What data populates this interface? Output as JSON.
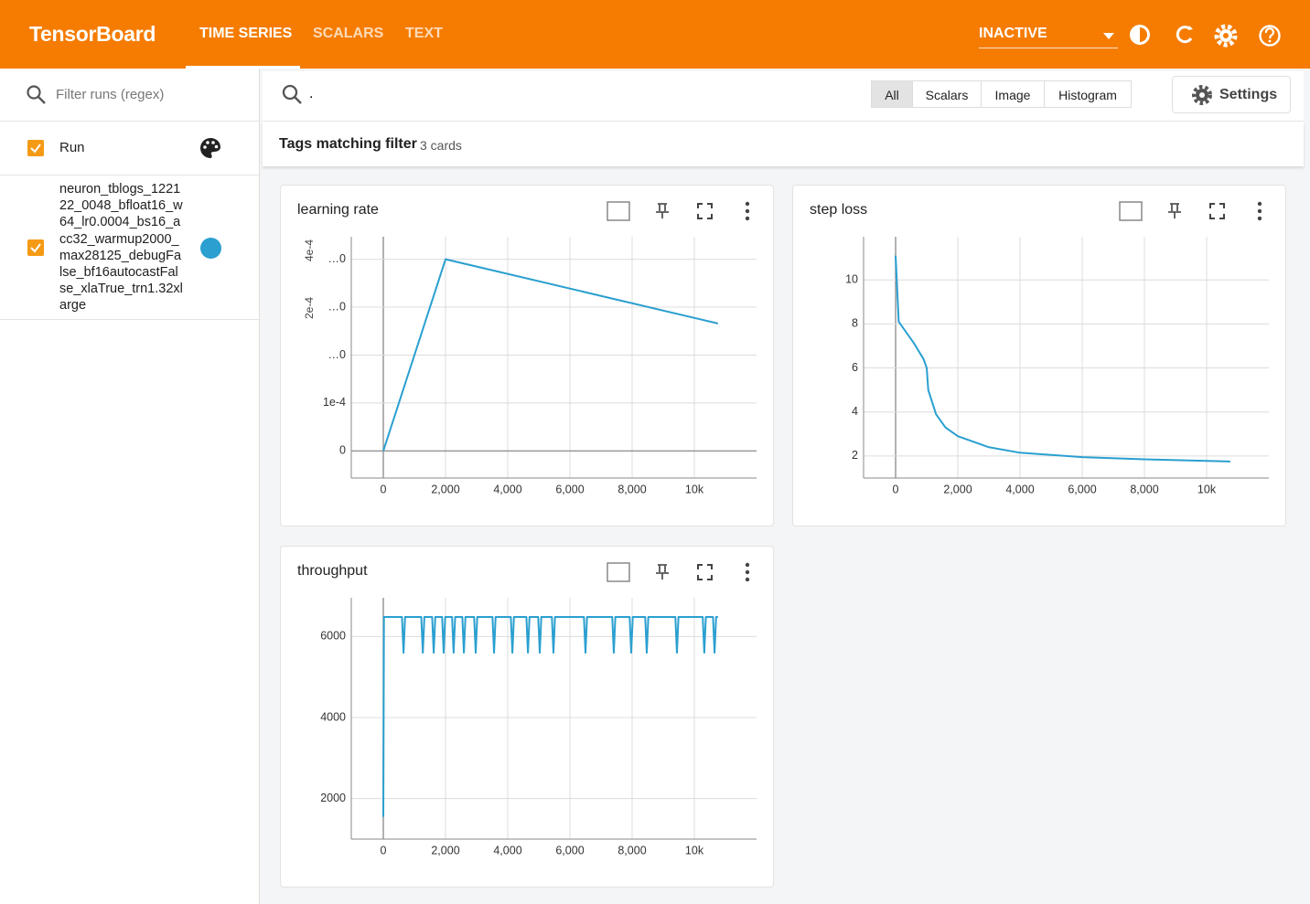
{
  "header": {
    "title": "TensorBoard",
    "tabs": [
      "TIME SERIES",
      "SCALARS",
      "TEXT"
    ],
    "status": "INACTIVE"
  },
  "sidebar": {
    "filter_placeholder": "Filter runs (regex)",
    "run_header": "Run",
    "runs": [
      {
        "name": "neuron_tblogs_122122_0048_bfloat16_w64_lr0.0004_bs16_acc32_warmup2000_max28125_debugFalse_bf16autocastFalse_xlaTrue_trn1.32xlarge",
        "color": "#2a9fd0"
      }
    ]
  },
  "toolbar": {
    "query": ".",
    "filters": [
      "All",
      "Scalars",
      "Image",
      "Histogram"
    ],
    "active_filter": 0,
    "settings": "Settings"
  },
  "summary": {
    "label": "Tags matching filter",
    "count": "3 cards"
  },
  "chart_data": [
    {
      "type": "line",
      "title": "learning rate",
      "color": "#2a9fd0",
      "grid": true,
      "x": [
        0,
        2000,
        10760
      ],
      "values": [
        0,
        0.0004,
        0.000266
      ],
      "xlim": [
        -1030,
        12000
      ],
      "xticks": [
        0,
        {
          "value": 2000,
          "label": "2,000"
        },
        {
          "value": 4000,
          "label": "4,000"
        },
        {
          "value": 6000,
          "label": "6,000"
        },
        {
          "value": 8000,
          "label": "8,000"
        },
        {
          "value": 10000,
          "label": "10k"
        }
      ],
      "ylim": [
        -5.66e-05,
        0.000447
      ],
      "yticks": [
        0,
        {
          "value": 0.0001,
          "label": "1e-4"
        },
        {
          "value": 0.0002,
          "label": "…0"
        },
        {
          "value": 0.0003,
          "label": "…0"
        },
        {
          "value": 0.0004,
          "label": "…0"
        }
      ],
      "clipped_labels": [
        "4e-4",
        "2e-4"
      ]
    },
    {
      "type": "line",
      "title": "step loss",
      "color": "#2a9fd0",
      "grid": true,
      "x": [
        0,
        100,
        300,
        600,
        900,
        1000,
        1050,
        1300,
        1600,
        2000,
        3000,
        4000,
        6000,
        8000,
        10760
      ],
      "values": [
        11.1,
        8.1,
        7.7,
        7.1,
        6.4,
        6.0,
        5.0,
        3.9,
        3.3,
        2.9,
        2.4,
        2.15,
        1.95,
        1.85,
        1.75
      ],
      "xlim": [
        -1030,
        12000
      ],
      "xticks": [
        0,
        {
          "value": 2000,
          "label": "2,000"
        },
        {
          "value": 4000,
          "label": "4,000"
        },
        {
          "value": 6000,
          "label": "6,000"
        },
        {
          "value": 8000,
          "label": "8,000"
        },
        {
          "value": 10000,
          "label": "10k"
        }
      ],
      "ylim": [
        1,
        11.96
      ],
      "yticks": [
        2,
        4,
        6,
        8,
        10
      ]
    },
    {
      "type": "line",
      "title": "throughput",
      "color": "#2a9fd0",
      "grid": true,
      "x": [
        0,
        20,
        600,
        650,
        700,
        1220,
        1270,
        1320,
        1570,
        1620,
        1670,
        1890,
        1940,
        1990,
        2210,
        2260,
        2310,
        2540,
        2590,
        2640,
        2920,
        2970,
        3020,
        3510,
        3560,
        3610,
        4100,
        4150,
        4200,
        4600,
        4650,
        4700,
        4980,
        5030,
        5080,
        5420,
        5470,
        5520,
        6450,
        6500,
        6550,
        7360,
        7410,
        7460,
        7920,
        7970,
        8020,
        8420,
        8470,
        8520,
        9390,
        9440,
        9490,
        10270,
        10320,
        10370,
        10600,
        10650,
        10700,
        10760
      ],
      "values": [
        1550,
        6480,
        6480,
        5600,
        6480,
        6480,
        5600,
        6480,
        6480,
        5600,
        6480,
        6480,
        5600,
        6480,
        6480,
        5600,
        6480,
        6480,
        5600,
        6480,
        6480,
        5600,
        6480,
        6480,
        5600,
        6480,
        6480,
        5600,
        6480,
        6480,
        5600,
        6480,
        6480,
        5600,
        6480,
        6480,
        5600,
        6480,
        6480,
        5600,
        6480,
        6480,
        5600,
        6480,
        6480,
        5600,
        6480,
        6480,
        5600,
        6480,
        6480,
        5600,
        6480,
        6480,
        5600,
        6480,
        6480,
        5600,
        6480,
        6480
      ],
      "xlim": [
        -1030,
        12000
      ],
      "xticks": [
        0,
        {
          "value": 2000,
          "label": "2,000"
        },
        {
          "value": 4000,
          "label": "4,000"
        },
        {
          "value": 6000,
          "label": "6,000"
        },
        {
          "value": 8000,
          "label": "8,000"
        },
        {
          "value": 10000,
          "label": "10k"
        }
      ],
      "ylim": [
        1000,
        6955
      ],
      "yticks": [
        2000,
        4000,
        6000
      ]
    }
  ]
}
